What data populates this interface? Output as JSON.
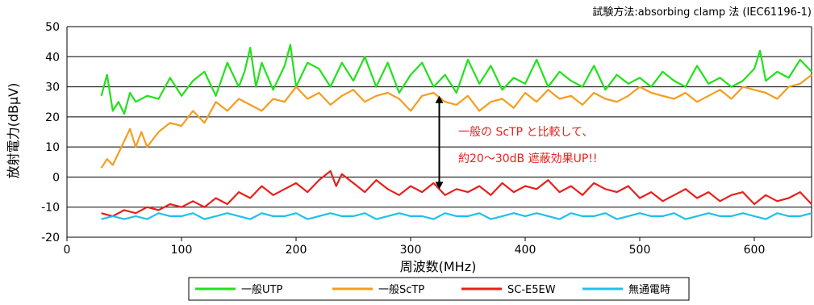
{
  "chart_data": {
    "type": "line",
    "subtitle": "試験方法:absorbing clamp 法 (IEC61196-1)",
    "xlabel": "周波数(MHz)",
    "ylabel": "放射電力(dBμV)",
    "xlim": [
      0,
      650
    ],
    "ylim": [
      -20,
      50
    ],
    "xticks": [
      "0",
      "100",
      "200",
      "300",
      "400",
      "500",
      "600"
    ],
    "yticks": [
      "-20",
      "-10",
      "0",
      "10",
      "20",
      "30",
      "40",
      "50"
    ],
    "grid": "horizontal",
    "legend_position": "bottom",
    "annotation": [
      "一般の ScTP と比較して、",
      "約20～30dB 遮蔽効果UP!!"
    ],
    "arrow": {
      "x": 325,
      "y_from": 27,
      "y_to": -4
    },
    "series": [
      {
        "name": "一般UTP",
        "color": "#22e11b",
        "x": [
          30,
          35,
          40,
          45,
          50,
          55,
          60,
          70,
          80,
          90,
          100,
          110,
          120,
          130,
          140,
          150,
          155,
          160,
          165,
          170,
          180,
          190,
          195,
          200,
          210,
          220,
          230,
          240,
          250,
          260,
          270,
          280,
          290,
          300,
          310,
          320,
          330,
          340,
          350,
          360,
          370,
          380,
          390,
          400,
          410,
          420,
          430,
          440,
          450,
          460,
          470,
          480,
          490,
          500,
          510,
          520,
          530,
          540,
          550,
          560,
          570,
          580,
          590,
          600,
          605,
          610,
          620,
          630,
          640,
          650
        ],
        "y": [
          27,
          34,
          22,
          25,
          21,
          28,
          25,
          27,
          26,
          33,
          27,
          32,
          35,
          27,
          38,
          30,
          35,
          43,
          30,
          38,
          29,
          37,
          44,
          30,
          38,
          36,
          30,
          38,
          32,
          40,
          30,
          38,
          28,
          34,
          38,
          30,
          34,
          28,
          39,
          31,
          37,
          29,
          33,
          31,
          39,
          30,
          35,
          32,
          30,
          37,
          29,
          34,
          31,
          33,
          30,
          35,
          32,
          30,
          37,
          31,
          33,
          30,
          32,
          36,
          42,
          32,
          35,
          33,
          39,
          35
        ]
      },
      {
        "name": "一般ScTP",
        "color": "#f59d1f",
        "x": [
          30,
          35,
          40,
          45,
          50,
          55,
          60,
          65,
          70,
          80,
          90,
          100,
          110,
          120,
          130,
          140,
          150,
          160,
          170,
          180,
          190,
          200,
          210,
          220,
          230,
          240,
          250,
          260,
          270,
          280,
          290,
          300,
          310,
          320,
          330,
          340,
          350,
          360,
          370,
          380,
          390,
          400,
          410,
          420,
          430,
          440,
          450,
          460,
          470,
          480,
          490,
          500,
          510,
          520,
          530,
          540,
          550,
          560,
          570,
          580,
          590,
          600,
          610,
          620,
          630,
          640,
          650
        ],
        "y": [
          3,
          6,
          4,
          8,
          12,
          16,
          10,
          15,
          10,
          15,
          18,
          17,
          22,
          18,
          25,
          22,
          26,
          24,
          22,
          26,
          25,
          30,
          26,
          28,
          24,
          27,
          29,
          25,
          27,
          28,
          26,
          22,
          27,
          28,
          25,
          24,
          27,
          22,
          25,
          26,
          23,
          28,
          25,
          29,
          26,
          27,
          24,
          28,
          26,
          25,
          27,
          30,
          28,
          27,
          26,
          28,
          25,
          27,
          29,
          26,
          30,
          29,
          28,
          26,
          30,
          31,
          34
        ]
      },
      {
        "name": "SC-E5EW",
        "color": "#e8201c",
        "x": [
          30,
          40,
          50,
          60,
          70,
          80,
          90,
          100,
          110,
          120,
          130,
          140,
          150,
          160,
          170,
          180,
          190,
          200,
          210,
          220,
          230,
          235,
          240,
          250,
          260,
          270,
          280,
          290,
          300,
          310,
          320,
          330,
          340,
          350,
          360,
          370,
          380,
          390,
          400,
          410,
          420,
          430,
          440,
          450,
          460,
          470,
          480,
          490,
          500,
          510,
          520,
          530,
          540,
          550,
          560,
          570,
          580,
          590,
          600,
          610,
          620,
          630,
          640,
          650
        ],
        "y": [
          -12,
          -13,
          -11,
          -12,
          -10,
          -11,
          -9,
          -10,
          -8,
          -10,
          -7,
          -9,
          -5,
          -7,
          -3,
          -6,
          -4,
          -2,
          -5,
          -1,
          2,
          -3,
          1,
          -2,
          -5,
          -1,
          -4,
          -6,
          -3,
          -5,
          -2,
          -6,
          -4,
          -5,
          -3,
          -6,
          -2,
          -5,
          -3,
          -4,
          -1,
          -5,
          -3,
          -6,
          -2,
          -4,
          -5,
          -3,
          -7,
          -5,
          -8,
          -6,
          -4,
          -7,
          -5,
          -8,
          -6,
          -5,
          -9,
          -6,
          -8,
          -7,
          -5,
          -9
        ]
      },
      {
        "name": "無通電時",
        "color": "#1fc0ee",
        "x": [
          30,
          40,
          50,
          60,
          70,
          80,
          90,
          100,
          110,
          120,
          130,
          140,
          150,
          160,
          170,
          180,
          190,
          200,
          210,
          220,
          230,
          240,
          250,
          260,
          270,
          280,
          290,
          300,
          310,
          320,
          330,
          340,
          350,
          360,
          370,
          380,
          390,
          400,
          410,
          420,
          430,
          440,
          450,
          460,
          470,
          480,
          490,
          500,
          510,
          520,
          530,
          540,
          550,
          560,
          570,
          580,
          590,
          600,
          610,
          620,
          630,
          640,
          650
        ],
        "y": [
          -14,
          -13,
          -14,
          -13,
          -14,
          -12,
          -13,
          -13,
          -12,
          -14,
          -13,
          -12,
          -13,
          -14,
          -12,
          -13,
          -13,
          -12,
          -14,
          -13,
          -12,
          -13,
          -13,
          -12,
          -14,
          -13,
          -12,
          -13,
          -13,
          -14,
          -12,
          -13,
          -13,
          -12,
          -14,
          -13,
          -12,
          -13,
          -12,
          -13,
          -14,
          -12,
          -13,
          -13,
          -12,
          -14,
          -13,
          -12,
          -13,
          -13,
          -12,
          -14,
          -13,
          -12,
          -13,
          -13,
          -12,
          -13,
          -14,
          -12,
          -13,
          -13,
          -12
        ]
      }
    ]
  }
}
